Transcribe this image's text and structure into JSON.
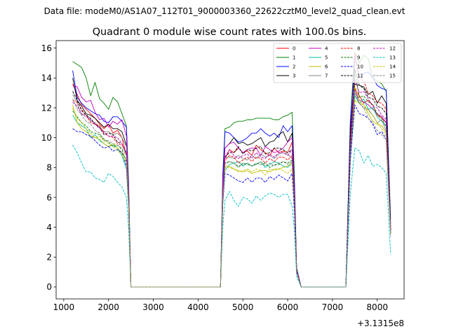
{
  "chart_data": {
    "type": "line",
    "suptitle": "Data file: modeM0/AS1A07_112T01_9000003360_22622cztM0_level2_quad_clean.evt",
    "title": "Quadrant 0 module wise count rates with 100.0s bins.",
    "xlabel": "",
    "ylabel": "",
    "offset_text": "+3.1315e8",
    "xlim": [
      830,
      8600
    ],
    "ylim": [
      -0.8,
      16.5
    ],
    "xticks": [
      1000,
      2000,
      3000,
      4000,
      5000,
      6000,
      7000,
      8000
    ],
    "xtick_labels": [
      "1000",
      "2000",
      "3000",
      "4000",
      "5000",
      "6000",
      "7000",
      "8000"
    ],
    "yticks": [
      0,
      2,
      4,
      6,
      8,
      10,
      12,
      14,
      16
    ],
    "ytick_labels": [
      "0",
      "2",
      "4",
      "6",
      "8",
      "10",
      "12",
      "14",
      "16"
    ],
    "legend_position": "upper right",
    "x": [
      1200,
      1300,
      1400,
      1500,
      1600,
      1700,
      1800,
      1900,
      2000,
      2100,
      2200,
      2300,
      2400,
      2450,
      2500,
      2600,
      4400,
      4500,
      4550,
      4600,
      4700,
      4800,
      4900,
      5000,
      5100,
      5200,
      5300,
      5400,
      5500,
      5600,
      5700,
      5800,
      5900,
      6000,
      6100,
      6150,
      6200,
      6300,
      7200,
      7300,
      7400,
      7450,
      7500,
      7600,
      7700,
      7800,
      7900,
      8000,
      8100,
      8200,
      8300
    ],
    "series": [
      {
        "name": "0",
        "color": "#ff0000",
        "dash": false,
        "values": [
          13.6,
          12.9,
          12.2,
          11.9,
          11.6,
          11.3,
          10.9,
          10.6,
          10.9,
          10.3,
          10.5,
          10.0,
          8.8,
          5.8,
          0.0,
          0.0,
          0.0,
          0.0,
          6.0,
          8.6,
          9.2,
          9.0,
          9.3,
          9.0,
          9.1,
          8.8,
          9.5,
          9.2,
          9.0,
          8.8,
          9.3,
          9.0,
          9.1,
          9.0,
          9.7,
          6.0,
          1.1,
          0.0,
          0.0,
          0.0,
          9.3,
          11.0,
          13.3,
          12.8,
          12.3,
          12.5,
          12.2,
          11.5,
          11.3,
          11.0,
          3.8
        ]
      },
      {
        "name": "1",
        "color": "#008000",
        "dash": false,
        "values": [
          15.1,
          14.9,
          14.7,
          14.0,
          12.8,
          13.7,
          12.6,
          12.3,
          11.9,
          12.7,
          12.4,
          11.6,
          10.8,
          7.0,
          0.0,
          0.0,
          0.0,
          0.0,
          7.5,
          10.6,
          10.7,
          11.0,
          11.1,
          11.1,
          11.2,
          11.2,
          11.3,
          11.3,
          11.3,
          11.3,
          11.2,
          11.2,
          11.4,
          11.5,
          11.7,
          7.5,
          1.3,
          0.0,
          0.0,
          0.0,
          11.2,
          13.5,
          15.7,
          15.0,
          15.5,
          15.3,
          14.0,
          13.8,
          13.6,
          13.1,
          4.5
        ]
      },
      {
        "name": "2",
        "color": "#0000ff",
        "dash": false,
        "values": [
          14.5,
          12.7,
          12.3,
          12.0,
          11.8,
          11.6,
          11.5,
          11.1,
          11.0,
          11.4,
          11.4,
          11.1,
          10.7,
          6.5,
          0.0,
          0.0,
          0.0,
          0.0,
          7.2,
          10.4,
          10.3,
          10.0,
          9.7,
          9.8,
          10.0,
          10.3,
          10.3,
          10.6,
          10.3,
          10.1,
          10.3,
          10.0,
          10.8,
          10.4,
          10.8,
          7.0,
          1.2,
          0.0,
          0.0,
          0.0,
          11.0,
          13.0,
          15.5,
          14.0,
          14.3,
          14.4,
          14.0,
          13.5,
          13.3,
          13.2,
          4.2
        ]
      },
      {
        "name": "3",
        "color": "#000000",
        "dash": false,
        "values": [
          14.0,
          12.5,
          12.1,
          11.6,
          11.5,
          11.3,
          11.0,
          10.7,
          10.9,
          10.6,
          10.6,
          10.4,
          9.5,
          6.0,
          0.0,
          0.0,
          0.0,
          0.0,
          6.5,
          9.3,
          9.6,
          10.0,
          9.6,
          9.7,
          9.5,
          9.6,
          9.8,
          10.0,
          9.4,
          9.7,
          9.8,
          10.2,
          10.4,
          9.7,
          10.3,
          6.5,
          1.2,
          0.0,
          0.0,
          0.0,
          10.5,
          12.3,
          13.6,
          13.5,
          13.4,
          12.9,
          13.1,
          12.3,
          12.8,
          12.3,
          4.0
        ]
      },
      {
        "name": "4",
        "color": "#bf00bf",
        "dash": false,
        "values": [
          13.5,
          13.4,
          12.7,
          12.4,
          12.5,
          11.7,
          11.2,
          11.3,
          10.7,
          11.1,
          10.9,
          11.2,
          10.1,
          6.3,
          0.0,
          0.0,
          0.0,
          0.0,
          6.8,
          9.3,
          9.6,
          9.7,
          9.3,
          9.0,
          9.2,
          9.3,
          9.3,
          8.8,
          9.4,
          9.2,
          9.0,
          9.1,
          9.3,
          9.7,
          10.0,
          6.5,
          1.2,
          0.0,
          0.0,
          0.0,
          10.0,
          12.4,
          13.2,
          12.5,
          12.4,
          12.2,
          11.9,
          11.6,
          11.4,
          11.0,
          3.9
        ]
      },
      {
        "name": "5",
        "color": "#00bfa0",
        "dash": false,
        "values": [
          11.5,
          11.0,
          10.8,
          10.6,
          10.0,
          10.2,
          9.8,
          9.6,
          9.4,
          9.5,
          9.3,
          8.8,
          7.9,
          5.2,
          0.0,
          0.0,
          0.0,
          0.0,
          5.5,
          7.8,
          8.2,
          8.3,
          8.4,
          8.1,
          8.3,
          8.1,
          8.2,
          8.4,
          8.0,
          8.2,
          8.4,
          8.3,
          8.1,
          8.0,
          8.3,
          5.3,
          1.0,
          0.0,
          0.0,
          0.0,
          8.5,
          10.5,
          12.8,
          12.3,
          12.6,
          11.9,
          12.0,
          11.4,
          11.1,
          10.8,
          3.7
        ]
      },
      {
        "name": "6",
        "color": "#bfbf00",
        "dash": false,
        "values": [
          12.2,
          11.0,
          10.6,
          10.4,
          10.1,
          10.0,
          9.9,
          9.6,
          9.4,
          9.6,
          9.3,
          9.0,
          8.5,
          5.5,
          0.0,
          0.0,
          0.0,
          0.0,
          5.8,
          8.1,
          8.1,
          7.9,
          7.8,
          7.7,
          7.8,
          7.6,
          7.7,
          7.8,
          7.8,
          7.7,
          7.9,
          7.9,
          8.0,
          8.1,
          8.3,
          5.5,
          1.0,
          0.0,
          0.0,
          0.0,
          8.8,
          10.8,
          12.5,
          12.3,
          12.2,
          11.6,
          11.1,
          10.9,
          10.8,
          10.3,
          3.6
        ]
      },
      {
        "name": "7",
        "color": "#808080",
        "dash": false,
        "values": [
          12.9,
          12.3,
          11.5,
          11.6,
          11.1,
          11.0,
          10.7,
          10.4,
          10.4,
          10.2,
          10.3,
          10.0,
          9.4,
          6.0,
          0.0,
          0.0,
          0.0,
          0.0,
          6.3,
          8.7,
          8.7,
          8.6,
          8.8,
          8.6,
          8.5,
          8.8,
          8.6,
          8.9,
          8.7,
          8.8,
          8.6,
          8.9,
          9.0,
          8.9,
          8.6,
          5.9,
          1.1,
          0.0,
          0.0,
          0.0,
          9.3,
          11.3,
          13.0,
          12.3,
          12.0,
          11.9,
          11.5,
          11.0,
          11.2,
          10.4,
          3.6
        ]
      },
      {
        "name": "8",
        "color": "#ff0000",
        "dash": true,
        "values": [
          12.5,
          12.4,
          11.9,
          11.5,
          11.0,
          10.9,
          10.8,
          10.3,
          10.1,
          10.0,
          9.6,
          9.5,
          9.0,
          5.8,
          0.0,
          0.0,
          0.0,
          0.0,
          6.2,
          8.5,
          8.8,
          8.7,
          8.3,
          8.5,
          8.7,
          8.4,
          8.7,
          8.6,
          8.3,
          8.6,
          8.4,
          8.7,
          8.7,
          8.5,
          8.8,
          5.8,
          1.1,
          0.0,
          0.0,
          0.0,
          9.2,
          11.5,
          15.6,
          14.0,
          13.8,
          13.0,
          12.8,
          12.4,
          12.3,
          11.9,
          3.8
        ]
      },
      {
        "name": "9",
        "color": "#008000",
        "dash": true,
        "values": [
          11.8,
          11.4,
          11.0,
          10.8,
          10.4,
          10.3,
          10.2,
          9.9,
          9.7,
          9.4,
          9.5,
          9.2,
          8.4,
          5.5,
          0.0,
          0.0,
          0.0,
          0.0,
          5.9,
          8.3,
          8.4,
          8.3,
          8.0,
          8.3,
          8.2,
          8.1,
          8.3,
          8.2,
          8.3,
          8.0,
          8.2,
          8.2,
          8.4,
          8.3,
          8.5,
          5.6,
          1.0,
          0.0,
          0.0,
          0.0,
          9.0,
          11.0,
          14.5,
          12.7,
          12.8,
          12.4,
          12.2,
          11.6,
          11.3,
          10.7,
          3.6
        ]
      },
      {
        "name": "10",
        "color": "#0000ff",
        "dash": true,
        "values": [
          10.6,
          10.4,
          10.4,
          10.2,
          10.1,
          9.8,
          9.5,
          9.3,
          9.4,
          9.1,
          9.2,
          9.0,
          8.1,
          5.3,
          0.0,
          0.0,
          0.0,
          0.0,
          5.5,
          7.6,
          7.5,
          7.3,
          7.1,
          7.0,
          7.3,
          7.0,
          7.3,
          7.3,
          7.0,
          7.4,
          7.2,
          7.5,
          7.3,
          7.1,
          7.6,
          5.0,
          1.0,
          0.0,
          0.0,
          0.0,
          8.5,
          10.4,
          12.2,
          11.6,
          11.5,
          11.3,
          10.9,
          10.2,
          10.4,
          9.9,
          3.4
        ]
      },
      {
        "name": "11",
        "color": "#000000",
        "dash": true,
        "values": [
          13.1,
          12.5,
          11.8,
          11.5,
          11.3,
          10.9,
          10.7,
          10.2,
          10.3,
          10.2,
          9.7,
          9.6,
          8.9,
          5.7,
          0.0,
          0.0,
          0.0,
          0.0,
          6.1,
          8.7,
          9.0,
          9.0,
          9.4,
          8.9,
          9.2,
          9.1,
          9.3,
          9.4,
          8.9,
          9.0,
          9.3,
          9.3,
          9.2,
          9.0,
          9.2,
          6.0,
          1.1,
          0.0,
          0.0,
          0.0,
          10.0,
          12.0,
          14.6,
          13.5,
          13.3,
          12.7,
          12.6,
          12.1,
          12.0,
          11.6,
          3.8
        ]
      },
      {
        "name": "12",
        "color": "#bf00bf",
        "dash": true,
        "values": [
          12.4,
          12.1,
          11.6,
          11.4,
          11.2,
          10.9,
          10.6,
          10.4,
          10.1,
          10.1,
          10.0,
          9.6,
          9.0,
          5.8,
          0.0,
          0.0,
          0.0,
          0.0,
          6.1,
          8.7,
          9.2,
          8.8,
          8.6,
          8.8,
          8.9,
          8.6,
          9.0,
          8.7,
          8.6,
          8.9,
          8.7,
          9.0,
          9.0,
          8.8,
          9.2,
          6.0,
          1.1,
          0.0,
          0.0,
          0.0,
          9.5,
          11.6,
          13.9,
          13.0,
          13.1,
          12.6,
          12.1,
          12.0,
          11.5,
          11.2,
          3.8
        ]
      },
      {
        "name": "13",
        "color": "#00bfbf",
        "dash": true,
        "values": [
          9.5,
          9.0,
          8.3,
          7.7,
          7.7,
          7.3,
          7.2,
          7.0,
          7.6,
          7.4,
          7.0,
          6.7,
          6.0,
          3.8,
          0.0,
          0.0,
          0.0,
          0.0,
          4.0,
          5.8,
          6.4,
          5.8,
          5.4,
          6.0,
          5.9,
          5.6,
          6.1,
          5.8,
          6.1,
          6.3,
          6.2,
          6.0,
          6.2,
          6.2,
          5.4,
          3.8,
          0.7,
          0.0,
          0.0,
          0.0,
          6.2,
          7.8,
          9.3,
          9.1,
          8.3,
          8.8,
          8.1,
          8.2,
          8.0,
          7.6,
          2.2
        ]
      },
      {
        "name": "14",
        "color": "#bfbf00",
        "dash": true,
        "values": [
          12.0,
          11.3,
          11.0,
          10.6,
          10.3,
          10.0,
          10.1,
          9.8,
          9.6,
          9.4,
          9.1,
          8.9,
          8.3,
          5.4,
          0.0,
          0.0,
          0.0,
          0.0,
          5.7,
          8.0,
          8.0,
          7.9,
          7.7,
          7.8,
          7.9,
          7.7,
          7.9,
          7.8,
          7.5,
          7.9,
          7.8,
          7.9,
          7.8,
          7.6,
          7.9,
          5.4,
          1.0,
          0.0,
          0.0,
          0.0,
          9.0,
          10.9,
          13.5,
          12.5,
          12.2,
          11.8,
          11.5,
          11.0,
          10.6,
          10.1,
          3.5
        ]
      },
      {
        "name": "15",
        "color": "#808080",
        "dash": true,
        "values": [
          12.6,
          11.9,
          11.5,
          11.1,
          10.9,
          10.5,
          10.3,
          9.8,
          9.8,
          9.6,
          9.5,
          9.3,
          8.8,
          5.6,
          0.0,
          0.0,
          0.0,
          0.0,
          5.8,
          8.2,
          8.4,
          8.3,
          8.1,
          8.2,
          8.3,
          8.1,
          8.2,
          8.4,
          8.1,
          8.3,
          8.1,
          8.3,
          8.4,
          8.2,
          8.4,
          5.5,
          1.0,
          0.0,
          0.0,
          0.0,
          8.9,
          11.0,
          13.2,
          12.3,
          12.0,
          11.3,
          11.0,
          10.5,
          10.2,
          9.8,
          3.6
        ]
      }
    ]
  }
}
